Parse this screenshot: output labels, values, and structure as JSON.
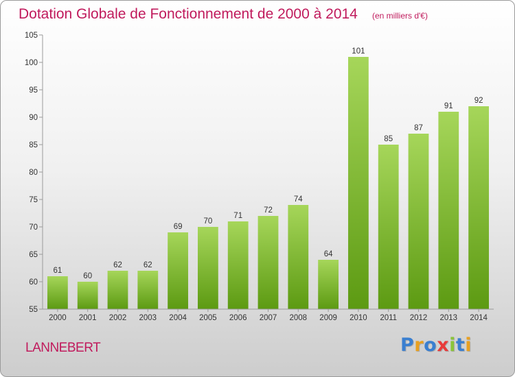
{
  "title": "Dotation Globale de Fonctionnement de 2000 à 2014",
  "subtitle": "(en milliers d'€)",
  "commune": "LANNEBERT",
  "logo": {
    "text": "Proxiti",
    "letters": [
      "P",
      "r",
      "o",
      "x",
      "i",
      "t",
      "i"
    ],
    "colors": [
      "#3a7fd0",
      "#e8a020",
      "#3a7fd0",
      "#e83a3a",
      "#8ac43a",
      "#3a7fd0",
      "#e8a020"
    ]
  },
  "chart_data": {
    "type": "bar",
    "categories": [
      "2000",
      "2001",
      "2002",
      "2003",
      "2004",
      "2005",
      "2006",
      "2007",
      "2008",
      "2009",
      "2010",
      "2011",
      "2012",
      "2013",
      "2014"
    ],
    "values": [
      61,
      60,
      62,
      62,
      69,
      70,
      71,
      72,
      74,
      64,
      101,
      85,
      87,
      91,
      92
    ],
    "ylim": [
      55,
      105
    ],
    "yticks": [
      55,
      60,
      65,
      70,
      75,
      80,
      85,
      90,
      95,
      100,
      105
    ],
    "grid": false,
    "bar_color_top": "#a6d65a",
    "bar_color_bottom": "#5c9a12",
    "axis_color": "#9a9a9a"
  }
}
